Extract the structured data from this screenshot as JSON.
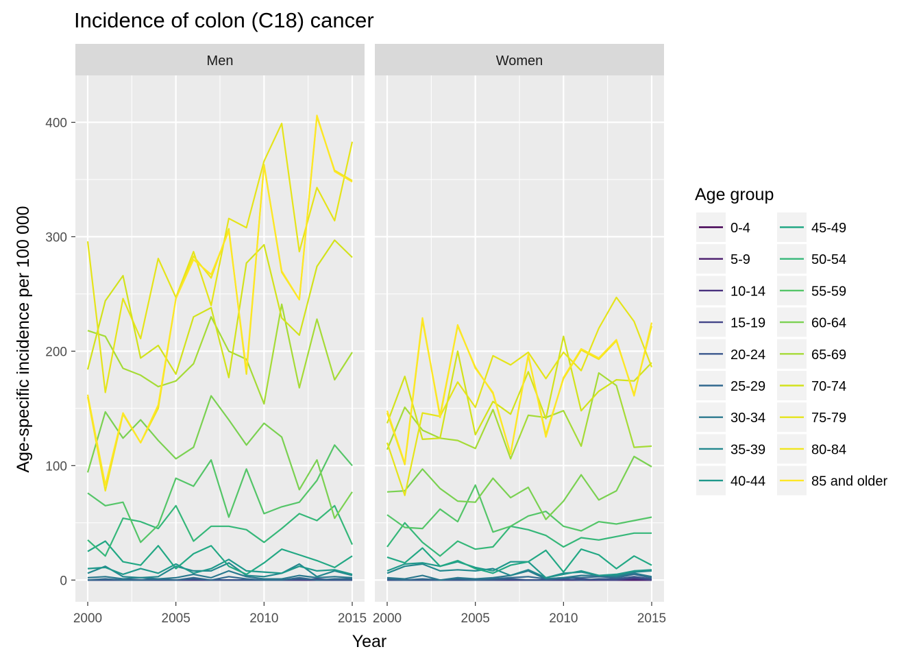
{
  "chart_data": {
    "type": "line",
    "title": "Incidence of colon (C18) cancer",
    "xlabel": "Year",
    "ylabel": "Age-specific incidence per 100 000",
    "xlim": [
      2000,
      2015
    ],
    "ylim": [
      -19,
      441
    ],
    "xticks": [
      2000,
      2005,
      2010,
      2015
    ],
    "yticks": [
      0,
      100,
      200,
      300,
      400
    ],
    "grid": true,
    "legend": {
      "title": "Age group",
      "position": "right"
    },
    "x": [
      2000,
      2001,
      2002,
      2003,
      2004,
      2005,
      2006,
      2007,
      2008,
      2009,
      2010,
      2011,
      2012,
      2013,
      2014,
      2015
    ],
    "panels": [
      {
        "name": "Men",
        "series": [
          {
            "name": "0-4",
            "color": "#440154",
            "values": [
              0,
              0,
              0,
              0,
              0,
              0,
              0,
              0,
              0,
              0,
              0,
              0,
              0,
              0,
              0,
              0
            ]
          },
          {
            "name": "5-9",
            "color": "#481A6C",
            "values": [
              0,
              0,
              0,
              0,
              0,
              0,
              0,
              0,
              0,
              0,
              0,
              0,
              0,
              0,
              0,
              0
            ]
          },
          {
            "name": "10-14",
            "color": "#472F7D",
            "values": [
              0,
              0,
              0,
              0,
              0,
              0,
              0,
              0,
              0,
              0,
              0,
              0,
              0,
              0,
              0,
              0
            ]
          },
          {
            "name": "15-19",
            "color": "#414487",
            "values": [
              0,
              0,
              0,
              0,
              0,
              0,
              0,
              0,
              0,
              0,
              0,
              0,
              0,
              1,
              0,
              0
            ]
          },
          {
            "name": "20-24",
            "color": "#39568C",
            "values": [
              0,
              0,
              0,
              0,
              0,
              0,
              1,
              0,
              0,
              0,
              0,
              0,
              1,
              0,
              0,
              0
            ]
          },
          {
            "name": "25-29",
            "color": "#31688E",
            "values": [
              0,
              1,
              0,
              0,
              1,
              0,
              2,
              0,
              3,
              1,
              0,
              0,
              2,
              0,
              1,
              1
            ]
          },
          {
            "name": "30-34",
            "color": "#2A788E",
            "values": [
              2,
              3,
              1,
              2,
              1,
              2,
              5,
              2,
              8,
              3,
              1,
              1,
              4,
              2,
              3,
              2
            ]
          },
          {
            "name": "35-39",
            "color": "#23888E",
            "values": [
              6,
              12,
              3,
              2,
              3,
              12,
              8,
              8,
              15,
              4,
              3,
              6,
              14,
              3,
              8,
              4
            ]
          },
          {
            "name": "40-44",
            "color": "#1F988B",
            "values": [
              10,
              11,
              5,
              10,
              6,
              14,
              6,
              10,
              18,
              8,
              7,
              6,
              12,
              8,
              9,
              5
            ]
          },
          {
            "name": "45-49",
            "color": "#22A884",
            "values": [
              25,
              34,
              16,
              13,
              30,
              10,
              23,
              30,
              12,
              5,
              15,
              27,
              22,
              17,
              11,
              21
            ]
          },
          {
            "name": "50-54",
            "color": "#35B779",
            "values": [
              35,
              21,
              54,
              51,
              45,
              65,
              34,
              47,
              47,
              44,
              33,
              45,
              58,
              52,
              65,
              31
            ]
          },
          {
            "name": "55-59",
            "color": "#54C568",
            "values": [
              76,
              65,
              68,
              33,
              48,
              89,
              82,
              105,
              55,
              97,
              58,
              64,
              68,
              87,
              118,
              100
            ]
          },
          {
            "name": "60-64",
            "color": "#7AD151",
            "values": [
              94,
              147,
              124,
              140,
              122,
              106,
              116,
              161,
              140,
              118,
              137,
              125,
              79,
              105,
              54,
              77
            ]
          },
          {
            "name": "65-69",
            "color": "#A5DB36",
            "values": [
              218,
              213,
              185,
              179,
              169,
              174,
              189,
              230,
              200,
              193,
              154,
              241,
              168,
              228,
              175,
              199
            ]
          },
          {
            "name": "70-74",
            "color": "#D2E21B",
            "values": [
              184,
              244,
              266,
              194,
              205,
              180,
              230,
              238,
              177,
              277,
              293,
              229,
              214,
              274,
              297,
              282
            ]
          },
          {
            "name": "75-79",
            "color": "#E5E419",
            "values": [
              296,
              164,
              246,
              211,
              281,
              247,
              287,
              240,
              316,
              308,
              366,
              399,
              287,
              343,
              314,
              383
            ]
          },
          {
            "name": "80-84",
            "color": "#F0E51D",
            "values": [
              160,
              78,
              145,
              120,
              150,
              246,
              283,
              264,
              307,
              180,
              363,
              269,
              245,
              405,
              358,
              349
            ]
          },
          {
            "name": "85 and older",
            "color": "#FDE725",
            "values": [
              162,
              83,
              146,
              120,
              153,
              246,
              280,
              267,
              305,
              183,
              362,
              270,
              245,
              406,
              357,
              348
            ]
          }
        ]
      },
      {
        "name": "Women",
        "series": [
          {
            "name": "0-4",
            "color": "#440154",
            "values": [
              0,
              0,
              0,
              0,
              0,
              0,
              0,
              0,
              0,
              0,
              0,
              0,
              0,
              0,
              0,
              0
            ]
          },
          {
            "name": "5-9",
            "color": "#481A6C",
            "values": [
              0,
              0,
              0,
              0,
              0,
              0,
              0,
              0,
              0,
              0,
              0,
              0,
              0,
              0,
              0,
              0
            ]
          },
          {
            "name": "10-14",
            "color": "#472F7D",
            "values": [
              0,
              0,
              0,
              0,
              0,
              0,
              0,
              0,
              0,
              0,
              0,
              0,
              0,
              0,
              1,
              0
            ]
          },
          {
            "name": "15-19",
            "color": "#414487",
            "values": [
              0,
              0,
              0,
              0,
              0,
              0,
              0,
              0,
              0,
              0,
              0,
              1,
              0,
              0,
              2,
              0
            ]
          },
          {
            "name": "20-24",
            "color": "#39568C",
            "values": [
              0,
              0,
              0,
              0,
              0,
              0,
              0,
              1,
              0,
              0,
              1,
              0,
              1,
              1,
              3,
              1
            ]
          },
          {
            "name": "25-29",
            "color": "#31688E",
            "values": [
              1,
              0,
              1,
              0,
              1,
              0,
              1,
              2,
              3,
              1,
              2,
              2,
              3,
              2,
              5,
              2
            ]
          },
          {
            "name": "30-34",
            "color": "#2A788E",
            "values": [
              2,
              1,
              4,
              0,
              2,
              1,
              2,
              4,
              8,
              1,
              2,
              4,
              4,
              3,
              6,
              3
            ]
          },
          {
            "name": "35-39",
            "color": "#23888E",
            "values": [
              6,
              12,
              14,
              8,
              9,
              8,
              10,
              4,
              9,
              2,
              6,
              7,
              4,
              4,
              7,
              8
            ]
          },
          {
            "name": "40-44",
            "color": "#1F988B",
            "values": [
              8,
              14,
              15,
              12,
              16,
              11,
              8,
              16,
              16,
              2,
              5,
              8,
              4,
              5,
              8,
              9
            ]
          },
          {
            "name": "45-49",
            "color": "#22A884",
            "values": [
              20,
              15,
              28,
              12,
              17,
              10,
              6,
              13,
              16,
              26,
              7,
              27,
              22,
              10,
              21,
              13
            ]
          },
          {
            "name": "50-54",
            "color": "#35B779",
            "values": [
              29,
              50,
              33,
              21,
              34,
              27,
              29,
              47,
              44,
              39,
              29,
              37,
              35,
              38,
              41,
              41
            ]
          },
          {
            "name": "55-59",
            "color": "#54C568",
            "values": [
              57,
              46,
              45,
              62,
              51,
              83,
              42,
              47,
              56,
              60,
              47,
              43,
              51,
              49,
              52,
              55
            ]
          },
          {
            "name": "60-64",
            "color": "#7AD151",
            "values": [
              77,
              78,
              97,
              80,
              69,
              68,
              89,
              72,
              81,
              53,
              69,
              92,
              70,
              78,
              108,
              99
            ]
          },
          {
            "name": "65-69",
            "color": "#A5DB36",
            "values": [
              114,
              151,
              131,
              124,
              122,
              115,
              149,
              106,
              144,
              142,
              148,
              117,
              181,
              170,
              116,
              117
            ]
          },
          {
            "name": "70-74",
            "color": "#D2E21B",
            "values": [
              137,
              178,
              123,
              124,
              200,
              127,
              156,
              145,
              182,
              141,
              213,
              148,
              165,
              175,
              174,
              190
            ]
          },
          {
            "name": "75-79",
            "color": "#E5E419",
            "values": [
              120,
              74,
              146,
              143,
              173,
              151,
              196,
              188,
              199,
              176,
              199,
              183,
              220,
              247,
              226,
              186
            ]
          },
          {
            "name": "80-84",
            "color": "#F0E51D",
            "values": [
              146,
              101,
              227,
              144,
              222,
              186,
              163,
              110,
              196,
              127,
              176,
              201,
              193,
              209,
              162,
              222
            ]
          },
          {
            "name": "85 and older",
            "color": "#FDE725",
            "values": [
              148,
              102,
              229,
              142,
              223,
              185,
              164,
              110,
              197,
              125,
              177,
              202,
              194,
              210,
              161,
              225
            ]
          }
        ]
      }
    ]
  }
}
